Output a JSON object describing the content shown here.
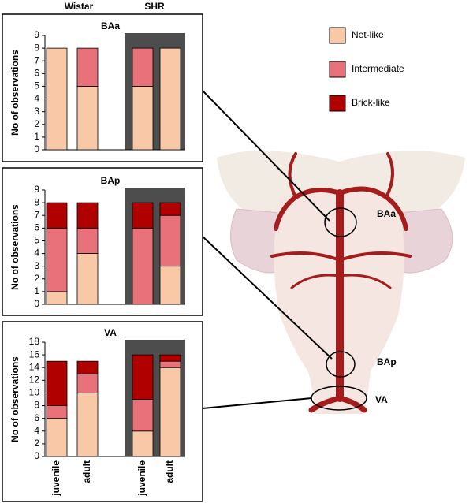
{
  "group_labels": [
    "Wistar",
    "SHR"
  ],
  "illustration_labels": [
    "BAa",
    "BAp",
    "VA"
  ],
  "chart_data": [
    {
      "type": "bar",
      "stacked": true,
      "title": "BAa",
      "ylabel": "No of observations",
      "categories": [
        null,
        null,
        null,
        null
      ],
      "series": [
        {
          "name": "Net-like",
          "color": "#f9c9a7",
          "values": [
            8,
            5,
            5,
            8
          ]
        },
        {
          "name": "Intermediate",
          "color": "#e8717a",
          "values": [
            0,
            3,
            3,
            0
          ]
        },
        {
          "name": "Brick-like",
          "color": "#b00000",
          "values": [
            0,
            0,
            0,
            0
          ]
        }
      ],
      "ylim": [
        0,
        9
      ],
      "yticks": [
        0,
        1,
        2,
        3,
        4,
        5,
        6,
        7,
        8,
        9
      ]
    },
    {
      "type": "bar",
      "stacked": true,
      "title": "BAp",
      "ylabel": "No of observations",
      "categories": [
        null,
        null,
        null,
        null
      ],
      "series": [
        {
          "name": "Net-like",
          "color": "#f9c9a7",
          "values": [
            1,
            4,
            0,
            3
          ]
        },
        {
          "name": "Intermediate",
          "color": "#e8717a",
          "values": [
            5,
            2,
            6,
            4
          ]
        },
        {
          "name": "Brick-like",
          "color": "#b00000",
          "values": [
            2,
            2,
            2,
            1
          ]
        }
      ],
      "ylim": [
        0,
        9
      ],
      "yticks": [
        0,
        1,
        2,
        3,
        4,
        5,
        6,
        7,
        8,
        9
      ]
    },
    {
      "type": "bar",
      "stacked": true,
      "title": "VA",
      "ylabel": "No of observations",
      "categories": [
        "juvenile",
        "adult",
        "juvenile",
        "adult"
      ],
      "series": [
        {
          "name": "Net-like",
          "color": "#f9c9a7",
          "values": [
            6,
            10,
            4,
            14
          ]
        },
        {
          "name": "Intermediate",
          "color": "#e8717a",
          "values": [
            2,
            3,
            5,
            1
          ]
        },
        {
          "name": "Brick-like",
          "color": "#b00000",
          "values": [
            7,
            2,
            7,
            1
          ]
        }
      ],
      "ylim": [
        0,
        18
      ],
      "yticks": [
        0,
        2,
        4,
        6,
        8,
        10,
        12,
        14,
        16,
        18
      ]
    }
  ]
}
